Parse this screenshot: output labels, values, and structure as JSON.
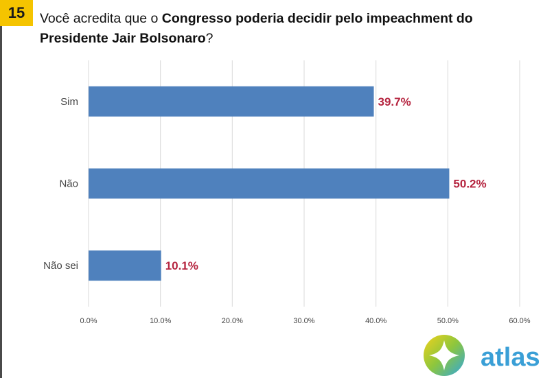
{
  "header": {
    "question_number": "15",
    "question_prefix": "Você acredita que o ",
    "question_bold": "Congresso poderia decidir pelo impeachment do Presidente Jair Bolsonaro",
    "question_suffix": "?"
  },
  "chart_data": {
    "type": "bar",
    "orientation": "horizontal",
    "categories": [
      "Sim",
      "Não",
      "Não sei"
    ],
    "values": [
      39.7,
      50.2,
      10.1
    ],
    "value_labels": [
      "39.7%",
      "50.2%",
      "10.1%"
    ],
    "x_ticks": [
      "0.0%",
      "10.0%",
      "20.0%",
      "30.0%",
      "40.0%",
      "50.0%",
      "60.0%"
    ],
    "xlim": [
      0,
      60
    ],
    "grid": true,
    "colors": {
      "bar": "#4f81bd",
      "value_label": "#b5243f",
      "grid": "#d9d9d9"
    }
  },
  "logo": {
    "text": "atlas",
    "color": "#3a9fd6"
  }
}
